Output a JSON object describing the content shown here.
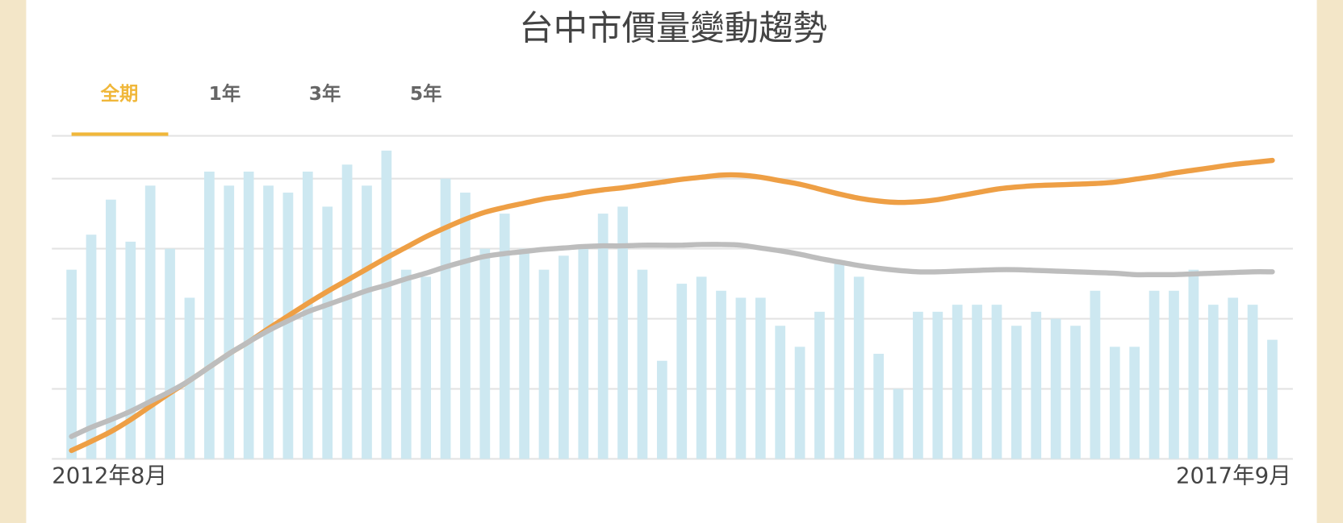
{
  "tabs": [
    "全期",
    "1年",
    "3年",
    "5年"
  ],
  "chart_data": {
    "type": "bar-line",
    "title": "台中市價量變動趨勢",
    "categories": [
      "2012年8月",
      null,
      null,
      null,
      null,
      null,
      null,
      null,
      null,
      null,
      null,
      null,
      null,
      null,
      null,
      null,
      null,
      null,
      null,
      null,
      null,
      null,
      null,
      null,
      null,
      null,
      null,
      null,
      null,
      null,
      null,
      null,
      null,
      null,
      null,
      null,
      null,
      null,
      null,
      null,
      null,
      null,
      null,
      null,
      null,
      null,
      null,
      null,
      null,
      null,
      null,
      null,
      null,
      null,
      null,
      null,
      null,
      null,
      null,
      null,
      null,
      "2017年9月"
    ],
    "values": [
      2.7,
      3.2,
      3.7,
      3.1,
      3.9,
      3.0,
      2.3,
      4.1,
      3.9,
      4.1,
      3.9,
      3.8,
      4.1,
      3.6,
      4.2,
      3.9,
      4.4,
      2.7,
      2.6,
      4.0,
      3.8,
      3.0,
      3.5,
      3.0,
      2.7,
      2.9,
      3.0,
      3.5,
      3.6,
      2.7,
      1.4,
      2.5,
      2.6,
      2.4,
      2.3,
      2.3,
      1.9,
      1.6,
      2.1,
      2.8,
      2.6,
      1.5,
      1.0,
      2.1,
      2.1,
      2.2,
      2.2,
      2.2,
      1.9,
      2.1,
      2.0,
      1.9,
      2.4,
      1.6,
      1.6,
      2.4,
      2.4,
      2.7,
      2.2,
      2.3,
      2.2,
      1.7
    ],
    "color": "#cde8f1",
    "series": [
      {
        "color": "#ee9f45",
        "values": [
          0.12,
          0.25,
          0.39,
          0.56,
          0.75,
          0.94,
          1.12,
          1.31,
          1.5,
          1.67,
          1.86,
          2.04,
          2.22,
          2.39,
          2.55,
          2.71,
          2.87,
          3.02,
          3.17,
          3.3,
          3.42,
          3.52,
          3.59,
          3.65,
          3.71,
          3.75,
          3.8,
          3.84,
          3.87,
          3.91,
          3.95,
          3.99,
          4.02,
          4.05,
          4.05,
          4.02,
          3.97,
          3.92,
          3.85,
          3.78,
          3.72,
          3.68,
          3.66,
          3.67,
          3.7,
          3.75,
          3.8,
          3.85,
          3.88,
          3.9,
          3.91,
          3.92,
          3.93,
          3.95,
          3.99,
          4.03,
          4.08,
          4.12,
          4.16,
          4.2,
          4.23,
          4.26
        ]
      },
      {
        "color": "#bdbdbd",
        "values": [
          0.32,
          0.45,
          0.56,
          0.68,
          0.82,
          0.96,
          1.12,
          1.31,
          1.5,
          1.67,
          1.83,
          1.97,
          2.1,
          2.2,
          2.3,
          2.4,
          2.48,
          2.57,
          2.65,
          2.74,
          2.82,
          2.89,
          2.93,
          2.96,
          2.99,
          3.01,
          3.03,
          3.04,
          3.04,
          3.05,
          3.05,
          3.05,
          3.06,
          3.06,
          3.05,
          3.01,
          2.97,
          2.92,
          2.86,
          2.81,
          2.76,
          2.72,
          2.69,
          2.67,
          2.67,
          2.68,
          2.69,
          2.7,
          2.7,
          2.69,
          2.68,
          2.67,
          2.66,
          2.65,
          2.63,
          2.63,
          2.63,
          2.64,
          2.65,
          2.66,
          2.67,
          2.67
        ]
      }
    ],
    "ylim": [
      0,
      4.6
    ],
    "yticks": [
      0,
      1,
      2,
      3,
      4
    ],
    "grid": true
  }
}
